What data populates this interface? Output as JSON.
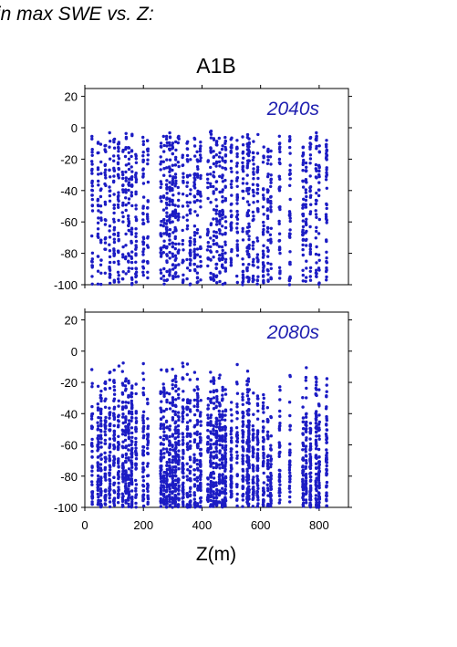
{
  "heading": "in max SWE vs. Z:",
  "chart_data": {
    "type": "scatter",
    "title": "A1B",
    "xlabel": "Z(m)",
    "ylabel": "",
    "xlim": [
      0,
      900
    ],
    "ylim": [
      -100,
      25
    ],
    "xticks": [
      "0",
      "200",
      "400",
      "600",
      "800"
    ],
    "yticks": [
      "20",
      "0",
      "-20",
      "-40",
      "-60",
      "-80",
      "-100"
    ],
    "point_color": "#1c1cc4",
    "grid": false,
    "panels": [
      {
        "label": "2040s",
        "columns": [
          [
            25,
            -5
          ],
          [
            45,
            -8
          ],
          [
            55,
            -10
          ],
          [
            70,
            -2
          ],
          [
            85,
            0
          ],
          [
            100,
            -3
          ],
          [
            115,
            -5
          ],
          [
            130,
            -1
          ],
          [
            140,
            -3
          ],
          [
            150,
            -6
          ],
          [
            160,
            -3
          ],
          [
            175,
            -10
          ],
          [
            200,
            -5
          ],
          [
            215,
            -7
          ],
          [
            260,
            -8
          ],
          [
            270,
            -4
          ],
          [
            280,
            -2
          ],
          [
            290,
            -3
          ],
          [
            300,
            -5
          ],
          [
            310,
            -7
          ],
          [
            320,
            -4
          ],
          [
            335,
            -6
          ],
          [
            350,
            -3
          ],
          [
            360,
            -8
          ],
          [
            375,
            -5
          ],
          [
            385,
            -5
          ],
          [
            395,
            -8
          ],
          [
            420,
            -5
          ],
          [
            430,
            -2
          ],
          [
            440,
            -4
          ],
          [
            450,
            -7
          ],
          [
            460,
            -5
          ],
          [
            470,
            -10
          ],
          [
            480,
            -6
          ],
          [
            500,
            -4
          ],
          [
            520,
            -8
          ],
          [
            540,
            -5
          ],
          [
            555,
            -3
          ],
          [
            560,
            -6
          ],
          [
            575,
            -8
          ],
          [
            590,
            -4
          ],
          [
            610,
            -10
          ],
          [
            625,
            -5
          ],
          [
            635,
            -12
          ],
          [
            665,
            -5
          ],
          [
            700,
            -5
          ],
          [
            745,
            -12
          ],
          [
            755,
            -20
          ],
          [
            770,
            -5
          ],
          [
            790,
            -3
          ],
          [
            800,
            -10
          ],
          [
            825,
            -2
          ]
        ]
      },
      {
        "label": "2080s",
        "columns": [
          [
            25,
            -8
          ],
          [
            45,
            -20
          ],
          [
            55,
            -15
          ],
          [
            70,
            -3
          ],
          [
            85,
            -2
          ],
          [
            100,
            -5
          ],
          [
            115,
            -8
          ],
          [
            130,
            -2
          ],
          [
            140,
            -5
          ],
          [
            150,
            -10
          ],
          [
            160,
            -8
          ],
          [
            175,
            -20
          ],
          [
            200,
            -5
          ],
          [
            215,
            -12
          ],
          [
            260,
            -8
          ],
          [
            270,
            -12
          ],
          [
            280,
            -2
          ],
          [
            290,
            -20
          ],
          [
            300,
            -8
          ],
          [
            310,
            -10
          ],
          [
            320,
            -15
          ],
          [
            335,
            -4
          ],
          [
            350,
            -5
          ],
          [
            360,
            -15
          ],
          [
            375,
            -10
          ],
          [
            385,
            -15
          ],
          [
            395,
            -25
          ],
          [
            420,
            -5
          ],
          [
            430,
            -10
          ],
          [
            440,
            -8
          ],
          [
            450,
            -20
          ],
          [
            460,
            -10
          ],
          [
            470,
            -15
          ],
          [
            480,
            -18
          ],
          [
            500,
            -15
          ],
          [
            520,
            -8
          ],
          [
            540,
            -20
          ],
          [
            555,
            -10
          ],
          [
            560,
            -12
          ],
          [
            575,
            -15
          ],
          [
            590,
            -20
          ],
          [
            610,
            -10
          ],
          [
            625,
            -30
          ],
          [
            635,
            -40
          ],
          [
            665,
            -15
          ],
          [
            700,
            -10
          ],
          [
            745,
            -20
          ],
          [
            755,
            -8
          ],
          [
            770,
            -40
          ],
          [
            790,
            -5
          ],
          [
            800,
            -20
          ],
          [
            825,
            -8
          ]
        ]
      }
    ]
  }
}
